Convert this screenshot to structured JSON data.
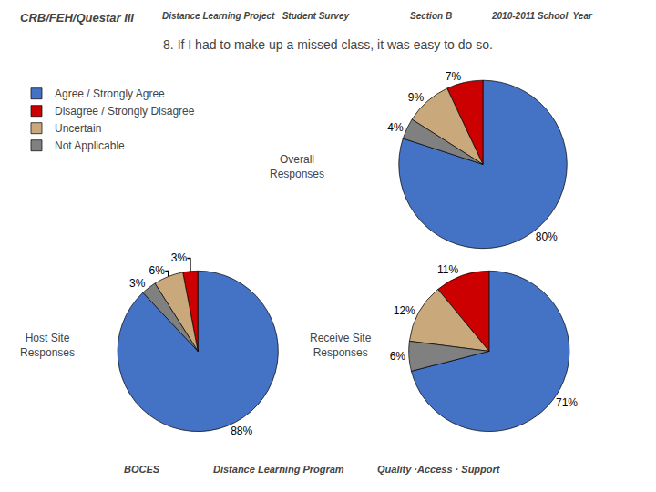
{
  "chart_data": [
    {
      "type": "pie",
      "title": "8. If I had to make up a missed class, it was easy to do so.",
      "annotations": [
        "CRB/FEH/Questar III",
        "Distance Learning Project   Student Survey",
        "Section B",
        "2010-2011 School  Year",
        "BOCES",
        "Distance Learning Program",
        "Quality ·Access · Support"
      ],
      "subtitle": "Overall\nResponses",
      "categories": [
        "Agree / Strongly Agree",
        "Disagree / Strongly Disagree",
        "Uncertain",
        "Not Applicable"
      ],
      "values": [
        80,
        7,
        9,
        4
      ],
      "value_labels": [
        "80%",
        "7%",
        "9%",
        "4%"
      ],
      "data_labels": true,
      "colors": [
        "#4472C4",
        "#CC0000",
        "#C9A87C",
        "#808080"
      ],
      "legend": "upper left"
    },
    {
      "type": "pie",
      "subtitle": "Host Site\nResponses",
      "categories": [
        "Agree / Strongly Agree",
        "Disagree / Strongly Disagree",
        "Uncertain",
        "Not Applicable"
      ],
      "values": [
        88,
        3,
        6,
        3
      ],
      "value_labels": [
        "88%",
        "3%",
        "6%",
        "3%"
      ],
      "data_labels": true,
      "colors": [
        "#4472C4",
        "#CC0000",
        "#C9A87C",
        "#808080"
      ]
    },
    {
      "type": "pie",
      "subtitle": "Receive Site\nResponses",
      "categories": [
        "Agree / Strongly Agree",
        "Disagree / Strongly Disagree",
        "Uncertain",
        "Not Applicable"
      ],
      "values": [
        71,
        11,
        12,
        6
      ],
      "value_labels": [
        "71%",
        "11%",
        "12%",
        "6%"
      ],
      "data_labels": true,
      "colors": [
        "#4472C4",
        "#CC0000",
        "#C9A87C",
        "#808080"
      ]
    }
  ]
}
